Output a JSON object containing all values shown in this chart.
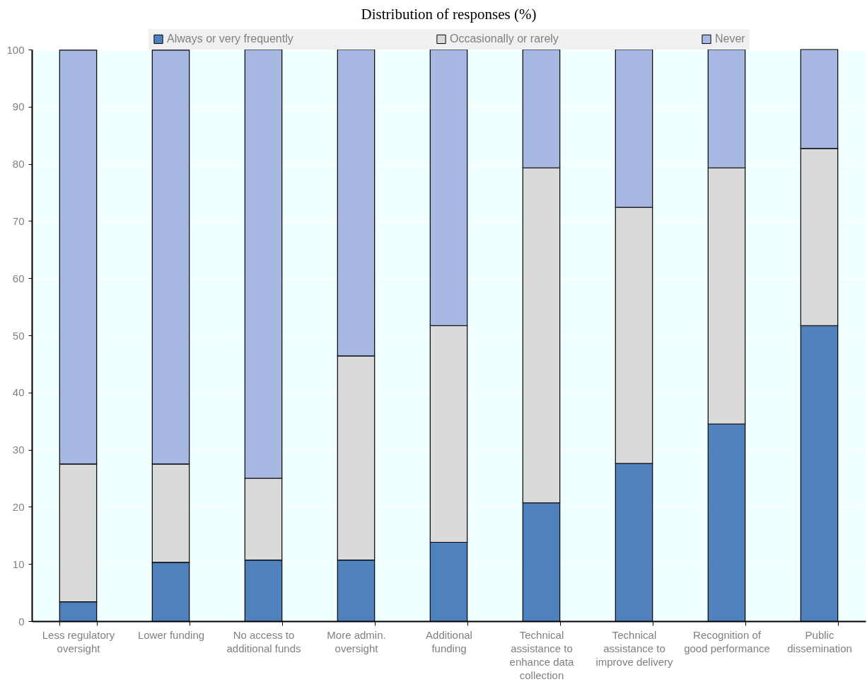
{
  "chart_data": {
    "type": "bar",
    "title": "Distribution of responses (%)",
    "categories": [
      "Less regulatory oversight",
      "Lower funding",
      "No access to additional funds",
      "More admin. oversight",
      "Additional funding",
      "Technical assistance to enhance data collection",
      "Technical assistance to improve delivery",
      "Recognition of good performance",
      "Public dissemination"
    ],
    "series": [
      {
        "name": "Always or very frequently",
        "color": "#4f81bd",
        "values": [
          3.4,
          10.3,
          10.7,
          10.7,
          13.8,
          20.7,
          27.6,
          34.5,
          51.7
        ]
      },
      {
        "name": "Occasionally or rarely",
        "color": "#dadada",
        "values": [
          24.1,
          17.2,
          14.3,
          35.7,
          37.9,
          58.6,
          44.8,
          44.8,
          31.0
        ]
      },
      {
        "name": "Never",
        "color": "#a7b8e2",
        "values": [
          72.4,
          72.4,
          75.0,
          53.6,
          48.3,
          20.7,
          27.6,
          20.7,
          17.3
        ]
      }
    ],
    "stacked": true,
    "ylim": [
      0,
      100
    ],
    "yticks": [
      0,
      10,
      20,
      30,
      40,
      50,
      60,
      70,
      80,
      90,
      100
    ],
    "grid": "y",
    "legend": "top"
  }
}
